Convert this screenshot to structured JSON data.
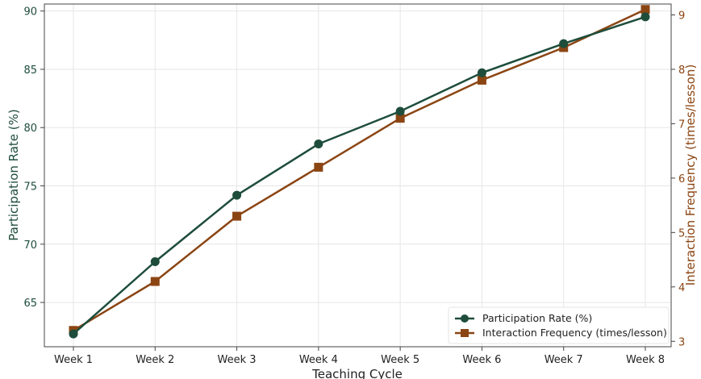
{
  "chart_data": {
    "type": "line",
    "categories": [
      "Week 1",
      "Week 2",
      "Week 3",
      "Week 4",
      "Week 5",
      "Week 6",
      "Week 7",
      "Week 8"
    ],
    "xlabel": "Teaching Cycle",
    "ylabel_left": "Participation Rate (%)",
    "ylabel_right": "Interaction Frequency (times/lesson)",
    "ylim_left": [
      61.2,
      90.6
    ],
    "yticks_left": [
      65,
      70,
      75,
      80,
      85,
      90
    ],
    "ylim_right": [
      2.9,
      9.2
    ],
    "yticks_right": [
      3,
      4,
      5,
      6,
      7,
      8,
      9
    ],
    "grid": true,
    "legend_position": "bottom-right",
    "series": [
      {
        "name": "Participation Rate (%)",
        "axis": "left",
        "marker": "circle",
        "color": "#1e4d3b",
        "values": [
          62.3,
          68.5,
          74.2,
          78.6,
          81.4,
          84.7,
          87.2,
          89.5
        ]
      },
      {
        "name": "Interaction Frequency (times/lesson)",
        "axis": "right",
        "marker": "square",
        "color": "#8b4513",
        "values": [
          3.2,
          4.1,
          5.3,
          6.2,
          7.1,
          7.8,
          8.4,
          9.1
        ]
      }
    ]
  }
}
